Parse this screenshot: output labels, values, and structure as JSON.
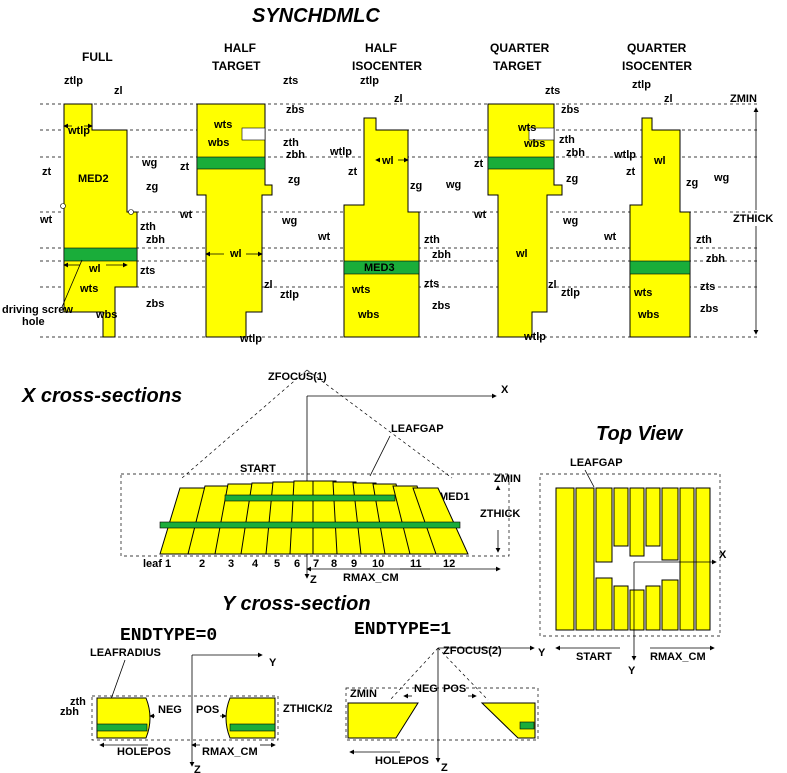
{
  "title": "SYNCHDMLC",
  "panels": [
    {
      "line1": "FULL",
      "line2": ""
    },
    {
      "line1": "HALF",
      "line2": "TARGET"
    },
    {
      "line1": "HALF",
      "line2": "ISOCENTER"
    },
    {
      "line1": "QUARTER",
      "line2": "TARGET"
    },
    {
      "line1": "QUARTER",
      "line2": "ISOCENTER"
    }
  ],
  "top_labels": {
    "zmin": "ZMIN",
    "zthick": "ZTHICK",
    "ztlp": "ztlp",
    "zl": "zl",
    "wtlp": "wtlp",
    "zt": "zt",
    "med2": "MED2",
    "wg": "wg",
    "zg": "zg",
    "wt": "wt",
    "zth": "zth",
    "zbh": "zbh",
    "wl": "wl",
    "zts": "zts",
    "wts": "wts",
    "zbs": "zbs",
    "wbs": "wbs",
    "wbs_var": "wbs",
    "driving_screw": "driving screw",
    "hole": "hole",
    "med3": "MED3",
    "zfocus1": "ZFOCUS(1)"
  },
  "x_section": {
    "title": "X cross-sections",
    "x_axis": "X",
    "z_axis": "Z",
    "start": "START",
    "leafgap": "LEAFGAP",
    "zmin": "ZMIN",
    "med1": "MED1",
    "zthick": "ZTHICK",
    "rmax": "RMAX_CM",
    "leaves": [
      "leaf 1",
      "2",
      "3",
      "4",
      "5",
      "6",
      "7",
      "8",
      "9",
      "10",
      "11",
      "12"
    ]
  },
  "top_view": {
    "title": "Top View",
    "leafgap": "LEAFGAP",
    "x_axis": "X",
    "y_axis": "Y",
    "start": "START",
    "rmax": "RMAX_CM"
  },
  "y_section": {
    "title": "Y cross-section",
    "endtype0": "ENDTYPE=0",
    "endtype1": "ENDTYPE=1",
    "leafradius": "LEAFRADIUS",
    "zth": "zth",
    "zbh": "zbh",
    "neg": "NEG",
    "pos": "POS",
    "zthick_half": "ZTHICK/2",
    "holepos": "HOLEPOS",
    "rmax": "RMAX_CM",
    "y_axis": "Y",
    "z_axis": "Z",
    "zfocus2": "ZFOCUS(2)",
    "zmin": "ZMIN"
  },
  "colors": {
    "leaf": "#ffff00",
    "hole": "#1aad3a",
    "line": "#000000"
  }
}
